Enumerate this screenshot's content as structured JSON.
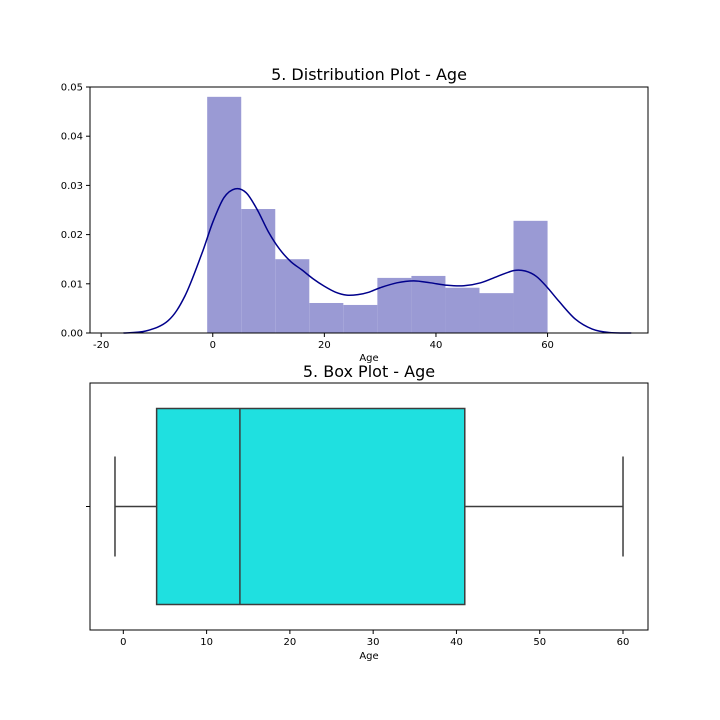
{
  "chart_data": [
    {
      "type": "bar",
      "subtype": "histogram-with-kde",
      "title": "5. Distribution Plot - Age",
      "xlabel": "Age",
      "ylabel": "",
      "xlim": [
        -22,
        78
      ],
      "ylim": [
        0,
        0.05
      ],
      "xticks": [
        -20,
        0,
        20,
        40,
        60
      ],
      "yticks": [
        0.0,
        0.01,
        0.02,
        0.03,
        0.04,
        0.05
      ],
      "ytick_labels": [
        "0.00",
        "0.01",
        "0.02",
        "0.03",
        "0.04",
        "0.05"
      ],
      "grid": false,
      "bar_color": "#9a9ad4",
      "kde_color": "#00008b",
      "bins": [
        {
          "x0": -1,
          "x1": 5.1,
          "value": 0.048
        },
        {
          "x0": 5.1,
          "x1": 11.2,
          "value": 0.0252
        },
        {
          "x0": 11.2,
          "x1": 17.3,
          "value": 0.015
        },
        {
          "x0": 17.3,
          "x1": 23.4,
          "value": 0.0061
        },
        {
          "x0": 23.4,
          "x1": 29.5,
          "value": 0.0057
        },
        {
          "x0": 29.5,
          "x1": 35.6,
          "value": 0.0112
        },
        {
          "x0": 35.6,
          "x1": 41.7,
          "value": 0.0116
        },
        {
          "x0": 41.7,
          "x1": 47.8,
          "value": 0.0092
        },
        {
          "x0": 47.8,
          "x1": 53.9,
          "value": 0.0081
        },
        {
          "x0": 53.9,
          "x1": 60,
          "value": 0.0228
        }
      ],
      "kde": {
        "x": [
          -16,
          -12,
          -8,
          -5,
          -2,
          0,
          2,
          4,
          6,
          8,
          10,
          12,
          14,
          16,
          18,
          20,
          22,
          24,
          26,
          28,
          30,
          33,
          36,
          39,
          42,
          45,
          48,
          51,
          54,
          56,
          58,
          60,
          62,
          65,
          68,
          71,
          75
        ],
        "y": [
          0.0,
          0.0004,
          0.0025,
          0.0075,
          0.016,
          0.0225,
          0.0275,
          0.0293,
          0.0285,
          0.025,
          0.0205,
          0.017,
          0.0145,
          0.0128,
          0.011,
          0.0095,
          0.0083,
          0.0077,
          0.0078,
          0.0083,
          0.0092,
          0.0102,
          0.0106,
          0.0102,
          0.0097,
          0.0096,
          0.0102,
          0.0115,
          0.0127,
          0.0126,
          0.0115,
          0.0092,
          0.0065,
          0.0028,
          0.0008,
          0.0001,
          0.0
        ]
      }
    },
    {
      "type": "box",
      "title": "5. Box Plot - Age",
      "xlabel": "Age",
      "xlim": [
        -4,
        63
      ],
      "xticks": [
        0,
        10,
        20,
        30,
        40,
        50,
        60
      ],
      "grid": false,
      "box_color": "#1fe0e0",
      "line_color": "#3c3c3c",
      "stats": {
        "min": -1,
        "q1": 4,
        "median": 14,
        "q3": 41,
        "max": 60
      }
    }
  ]
}
